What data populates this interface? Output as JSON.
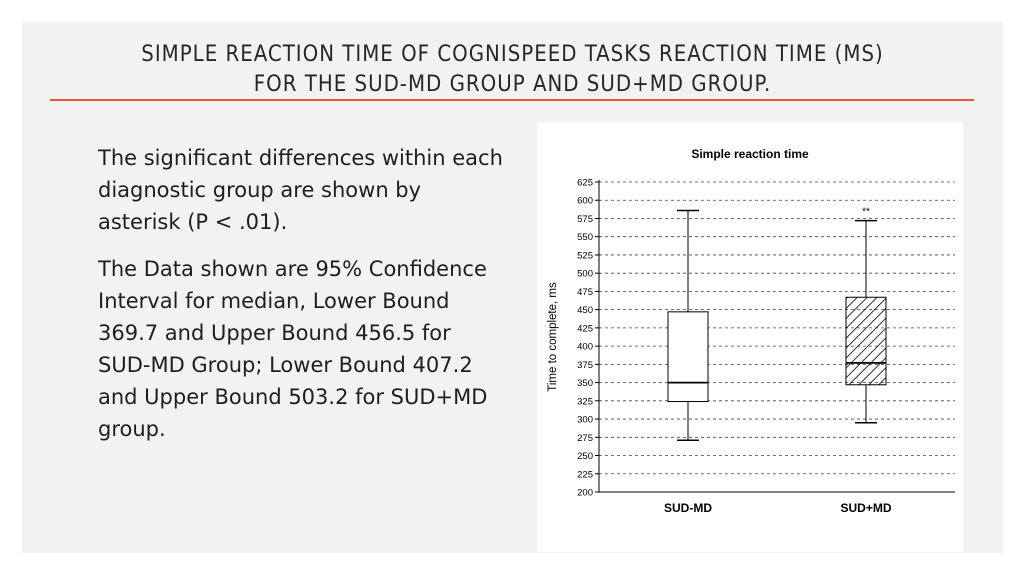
{
  "slide": {
    "title_line1": "SIMPLE REACTION TIME OF COGNISPEED TASKS REACTION TIME (MS)",
    "title_line2": "FOR THE SUD-MD GROUP AND SUD+MD GROUP.",
    "paragraph1": "The significant differences within each diagnostic group are shown by asterisk (P < .01).",
    "paragraph2": "The Data shown are 95% Confidence Interval for median, Lower Bound 369.7 and Upper Bound 456.5 for SUD-MD Group; Lower Bound 407.2 and Upper  Bound 503.2 for SUD+MD group."
  },
  "colors": {
    "accent_rule": "#e2573c",
    "slide_bg": "#f2f2f2",
    "text": "#262626"
  },
  "chart_data": {
    "type": "boxplot",
    "title": "Simple reaction time",
    "ylabel": "Time to complete, ms",
    "xlabel": "",
    "ylim": [
      200,
      625
    ],
    "yticks": [
      200,
      225,
      250,
      275,
      300,
      325,
      350,
      375,
      400,
      425,
      450,
      475,
      500,
      525,
      550,
      575,
      600,
      625
    ],
    "grid": true,
    "categories": [
      "SUD-MD",
      "SUD+MD"
    ],
    "boxes": [
      {
        "category": "SUD-MD",
        "min": 271,
        "q1": 324,
        "median": 350,
        "q3": 447,
        "max": 586,
        "pattern": "none",
        "annotation": ""
      },
      {
        "category": "SUD+MD",
        "min": 295,
        "q1": 347,
        "median": 377,
        "q3": 467,
        "max": 572,
        "pattern": "hatched",
        "annotation": "**"
      }
    ]
  }
}
